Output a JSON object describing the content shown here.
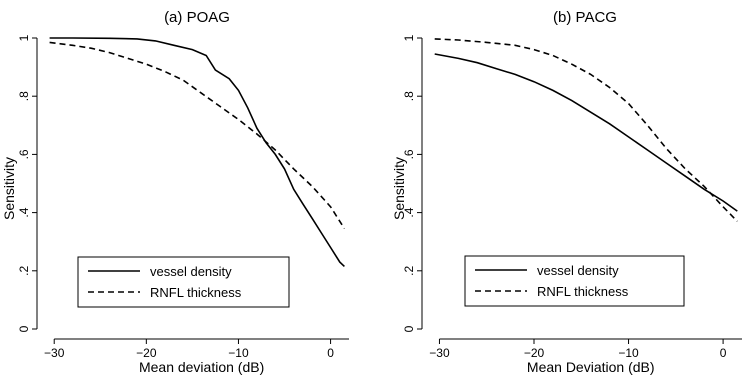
{
  "chart_data": [
    {
      "type": "line",
      "title": "(a) POAG",
      "xlabel": "Mean deviation (dB)",
      "ylabel": "Sensitivity",
      "xlim": [
        -31,
        2
      ],
      "ylim": [
        0,
        1
      ],
      "xticks": [
        -30,
        -20,
        -10,
        0
      ],
      "yticks": [
        0,
        0.2,
        0.4,
        0.6,
        0.8,
        1
      ],
      "ytick_labels": [
        "0",
        ".2",
        ".4",
        ".6",
        ".8",
        "1"
      ],
      "grid": false,
      "legend": "bottom-left",
      "series": [
        {
          "name": "vessel density",
          "style": "solid",
          "x": [
            -30.5,
            -28,
            -24,
            -21,
            -19,
            -17,
            -15,
            -13.5,
            -12.5,
            -11,
            -10,
            -9,
            -8,
            -7,
            -6,
            -5,
            -4,
            -3,
            -2,
            -1,
            0,
            1,
            1.5
          ],
          "y": [
            1.0,
            1.0,
            0.999,
            0.997,
            0.99,
            0.975,
            0.96,
            0.94,
            0.89,
            0.86,
            0.82,
            0.76,
            0.69,
            0.64,
            0.6,
            0.55,
            0.48,
            0.43,
            0.38,
            0.33,
            0.28,
            0.23,
            0.215
          ]
        },
        {
          "name": "RNFL thickness",
          "style": "dashed",
          "x": [
            -30.5,
            -28,
            -26,
            -24,
            -22,
            -20,
            -18,
            -16,
            -14,
            -12,
            -10,
            -8,
            -6,
            -4,
            -2,
            0,
            1.5
          ],
          "y": [
            0.985,
            0.975,
            0.965,
            0.95,
            0.93,
            0.91,
            0.885,
            0.855,
            0.81,
            0.765,
            0.72,
            0.67,
            0.615,
            0.55,
            0.49,
            0.42,
            0.345
          ]
        }
      ]
    },
    {
      "type": "line",
      "title": "(b) PACG",
      "xlabel": "Mean Deviation (dB)",
      "ylabel": "Sensitivity",
      "xlim": [
        -31,
        2
      ],
      "ylim": [
        0,
        1
      ],
      "xticks": [
        -30,
        -20,
        -10,
        0
      ],
      "yticks": [
        0,
        0.2,
        0.4,
        0.6,
        0.8,
        1
      ],
      "ytick_labels": [
        "0",
        ".2",
        ".4",
        ".6",
        ".8",
        "1"
      ],
      "grid": false,
      "legend": "bottom-left",
      "series": [
        {
          "name": "vessel density",
          "style": "solid",
          "x": [
            -30.5,
            -28,
            -26,
            -24,
            -22,
            -20,
            -18,
            -16,
            -14,
            -12,
            -10,
            -8,
            -6,
            -4,
            -2,
            0,
            1.5
          ],
          "y": [
            0.945,
            0.93,
            0.915,
            0.895,
            0.875,
            0.85,
            0.82,
            0.785,
            0.745,
            0.705,
            0.66,
            0.615,
            0.57,
            0.525,
            0.48,
            0.44,
            0.405
          ]
        },
        {
          "name": "RNFL thickness",
          "style": "dashed",
          "x": [
            -30.5,
            -28,
            -25,
            -22,
            -20,
            -18,
            -16,
            -14,
            -12,
            -10,
            -8,
            -6,
            -4,
            -2,
            0,
            1.5
          ],
          "y": [
            0.997,
            0.993,
            0.985,
            0.975,
            0.96,
            0.94,
            0.91,
            0.875,
            0.83,
            0.775,
            0.7,
            0.62,
            0.55,
            0.49,
            0.42,
            0.37
          ]
        }
      ]
    }
  ]
}
